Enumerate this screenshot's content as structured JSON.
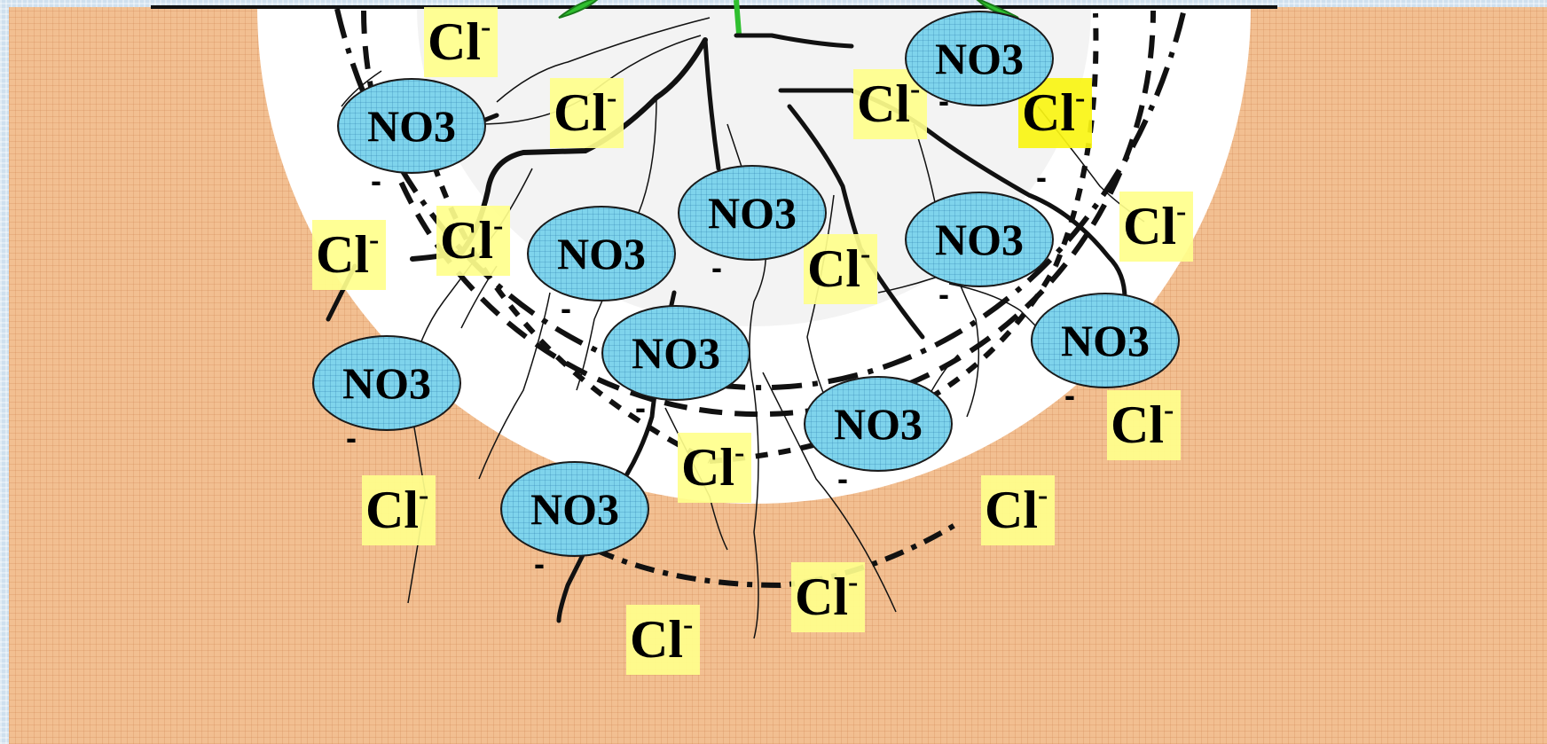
{
  "labels": {
    "nitrate": "NO3",
    "chloride": "Cl",
    "charge": "-"
  },
  "colors": {
    "soil": "#f2bf91",
    "root_zone": "#ffffff",
    "nitrate_fill": "#7fd4ec",
    "chloride_fill": "#ffff8c",
    "leaf": "#2fbf2f"
  }
}
